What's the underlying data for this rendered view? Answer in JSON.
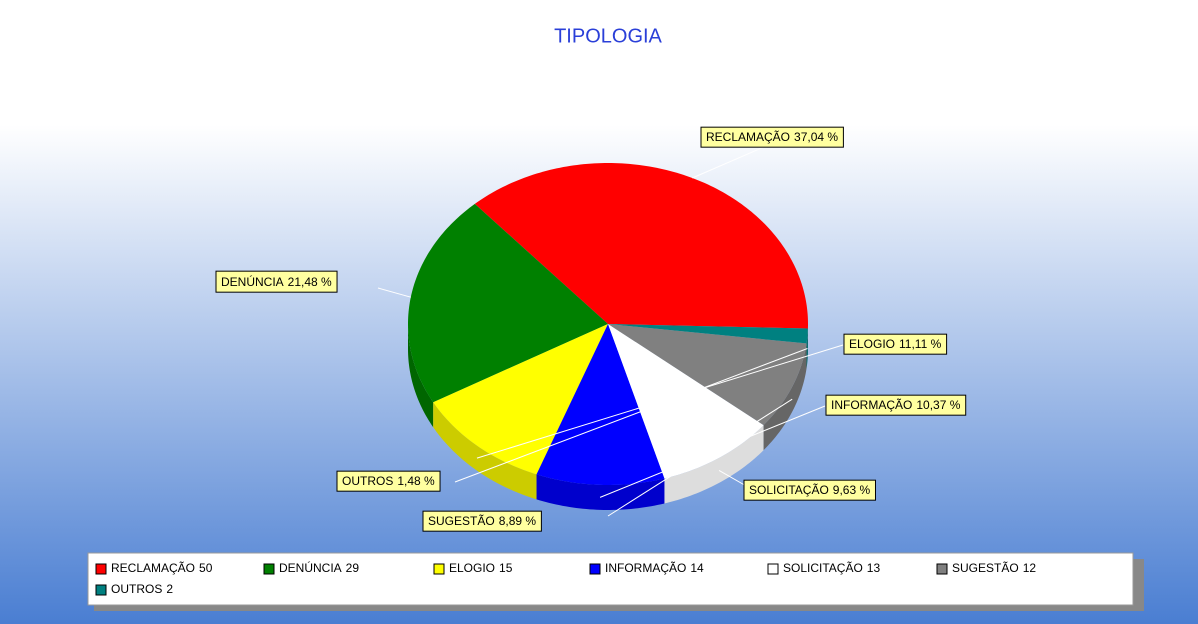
{
  "chart_data": {
    "type": "pie",
    "title": "TIPOLOGIA",
    "categories": [
      "RECLAMAÇÃO",
      "DENÚNCIA",
      "ELOGIO",
      "INFORMAÇÃO",
      "SOLICITAÇÃO",
      "SUGESTÃO",
      "OUTROS"
    ],
    "values": [
      37.04,
      21.48,
      11.11,
      10.37,
      9.63,
      8.89,
      1.48
    ],
    "value_labels": [
      "37,04 %",
      "21,48 %",
      "11,11 %",
      "10,37 %",
      "9,63 %",
      "8,89 %",
      "1,48 %"
    ],
    "counts": [
      50,
      29,
      15,
      14,
      13,
      12,
      2
    ],
    "colors": [
      "#ff0000",
      "#008000",
      "#ffff00",
      "#0000ff",
      "#ffffff",
      "#808080",
      "#008080"
    ]
  }
}
